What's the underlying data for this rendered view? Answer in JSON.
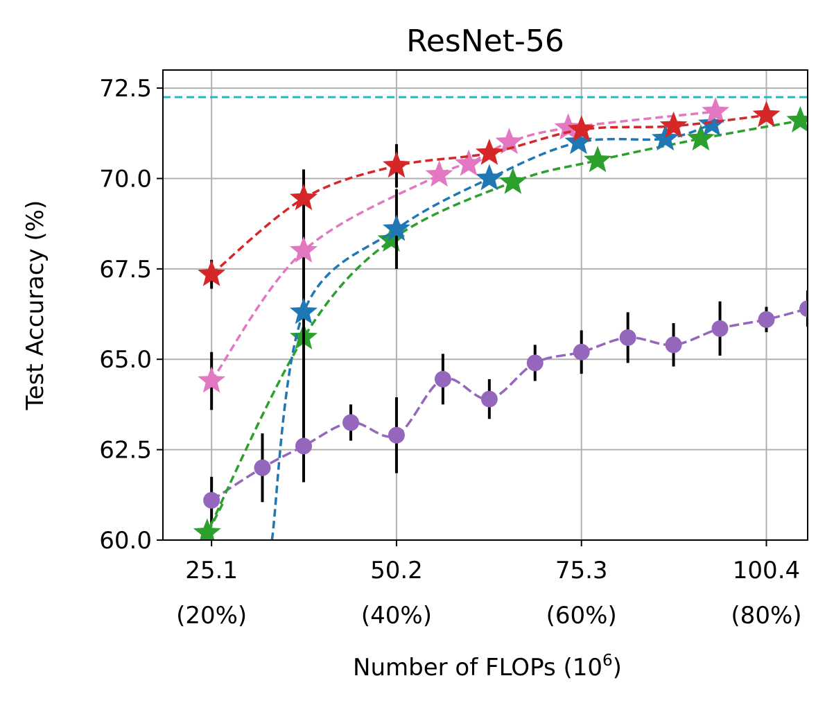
{
  "chart_data": {
    "type": "line",
    "title": "ResNet-56",
    "xlabel": "Number of FLOPs (10",
    "xlabel_sup": "6",
    "xlabel_end": ")",
    "ylabel": "Test Accuracy (%)",
    "xlim": [
      18.5,
      106
    ],
    "ylim": [
      60.0,
      73.0
    ],
    "x_ticks": [
      {
        "value": 25.1,
        "label": "25.1",
        "sublabel": "(20%)"
      },
      {
        "value": 50.2,
        "label": "50.2",
        "sublabel": "(40%)"
      },
      {
        "value": 75.3,
        "label": "75.3",
        "sublabel": "(60%)"
      },
      {
        "value": 100.4,
        "label": "100.4",
        "sublabel": "(80%)"
      }
    ],
    "y_ticks": [
      {
        "value": 60.0,
        "label": "60.0"
      },
      {
        "value": 62.5,
        "label": "62.5"
      },
      {
        "value": 65.0,
        "label": "65.0"
      },
      {
        "value": 67.5,
        "label": "67.5"
      },
      {
        "value": 70.0,
        "label": "70.0"
      },
      {
        "value": 72.5,
        "label": "72.5"
      }
    ],
    "grid": true,
    "reference_line": {
      "y": 72.25,
      "color": "#17becf",
      "style": "dashed"
    },
    "series": [
      {
        "name": "purple",
        "color": "#9467bd",
        "marker": "circle",
        "x": [
          25.1,
          32.0,
          37.6,
          44.0,
          50.2,
          56.5,
          62.8,
          69.0,
          75.3,
          81.6,
          87.8,
          94.1,
          100.4,
          106.0
        ],
        "y": [
          61.1,
          62.0,
          62.6,
          63.25,
          62.9,
          64.45,
          63.9,
          64.9,
          65.2,
          65.6,
          65.4,
          65.85,
          66.1,
          66.4
        ],
        "err": [
          0.65,
          0.95,
          1.0,
          0.5,
          1.05,
          0.7,
          0.55,
          0.5,
          0.6,
          0.7,
          0.6,
          0.75,
          0.35,
          0.5
        ]
      },
      {
        "name": "green",
        "color": "#2ca02c",
        "marker": "star",
        "x": [
          24.5,
          37.6,
          49.5,
          66.0,
          77.5,
          91.5,
          105.0
        ],
        "y": [
          60.2,
          65.6,
          68.3,
          69.9,
          70.5,
          71.1,
          71.6
        ],
        "err": [
          0,
          0,
          0,
          0,
          0,
          0,
          0
        ],
        "curve_start": {
          "x": 26.6,
          "y": 61.0
        }
      },
      {
        "name": "blue",
        "color": "#1f77b4",
        "marker": "star",
        "x": [
          37.6,
          50.2,
          62.8,
          74.9,
          86.7,
          93.0
        ],
        "y": [
          66.3,
          68.6,
          70.0,
          71.0,
          71.1,
          71.5
        ],
        "err": [
          2.8,
          1.1,
          0,
          0,
          0,
          0
        ],
        "curve_start": {
          "x": 33.3,
          "y": 60.0
        }
      },
      {
        "name": "pink",
        "color": "#e377c2",
        "marker": "star",
        "x": [
          25.1,
          37.6,
          56.0,
          60.0,
          65.5,
          73.5,
          93.5
        ],
        "y": [
          64.4,
          68.0,
          70.1,
          70.4,
          71.0,
          71.4,
          71.85
        ],
        "err": [
          0.8,
          0.7,
          0,
          0,
          0,
          0,
          0
        ]
      },
      {
        "name": "red",
        "color": "#d62728",
        "marker": "star",
        "x": [
          25.1,
          37.6,
          50.2,
          62.8,
          75.3,
          87.8,
          100.4
        ],
        "y": [
          67.35,
          69.45,
          70.35,
          70.7,
          71.35,
          71.45,
          71.75
        ],
        "err": [
          0.4,
          0.8,
          0.6,
          0,
          0,
          0,
          0
        ]
      }
    ]
  }
}
